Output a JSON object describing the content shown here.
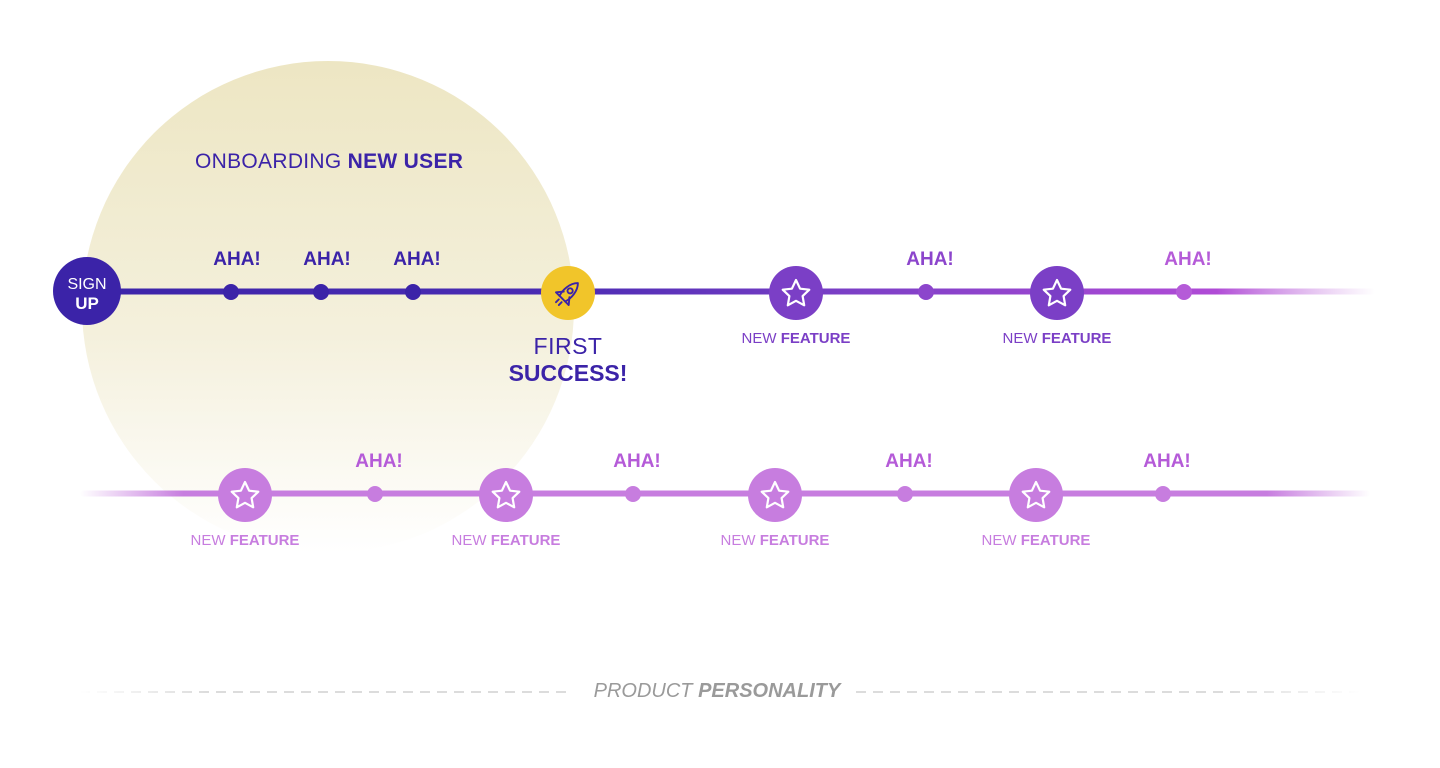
{
  "onboarding": {
    "light": "ONBOARDING",
    "bold": "NEW USER"
  },
  "signup": {
    "light": "SIGN",
    "bold": "UP"
  },
  "first_success": {
    "light": "FIRST",
    "bold": "SUCCESS!"
  },
  "aha_label": "AHA!",
  "new_feature": {
    "light": "NEW",
    "bold": "FEATURE"
  },
  "product_personality": {
    "light": "PRODUCT",
    "bold": "PERSONALITY"
  },
  "row1": {
    "aha_count": 5,
    "feature_count": 2
  },
  "row2": {
    "aha_count": 4,
    "feature_count": 4
  },
  "colors": {
    "indigo": "#3b23a8",
    "purple": "#7b3fc6",
    "violet": "#b04bd6",
    "lilac": "#c77ddf",
    "yellow": "#f1c52a",
    "halo": "#efe9c6",
    "gray": "#9a9a9a",
    "dash": "#dcdcdc"
  }
}
